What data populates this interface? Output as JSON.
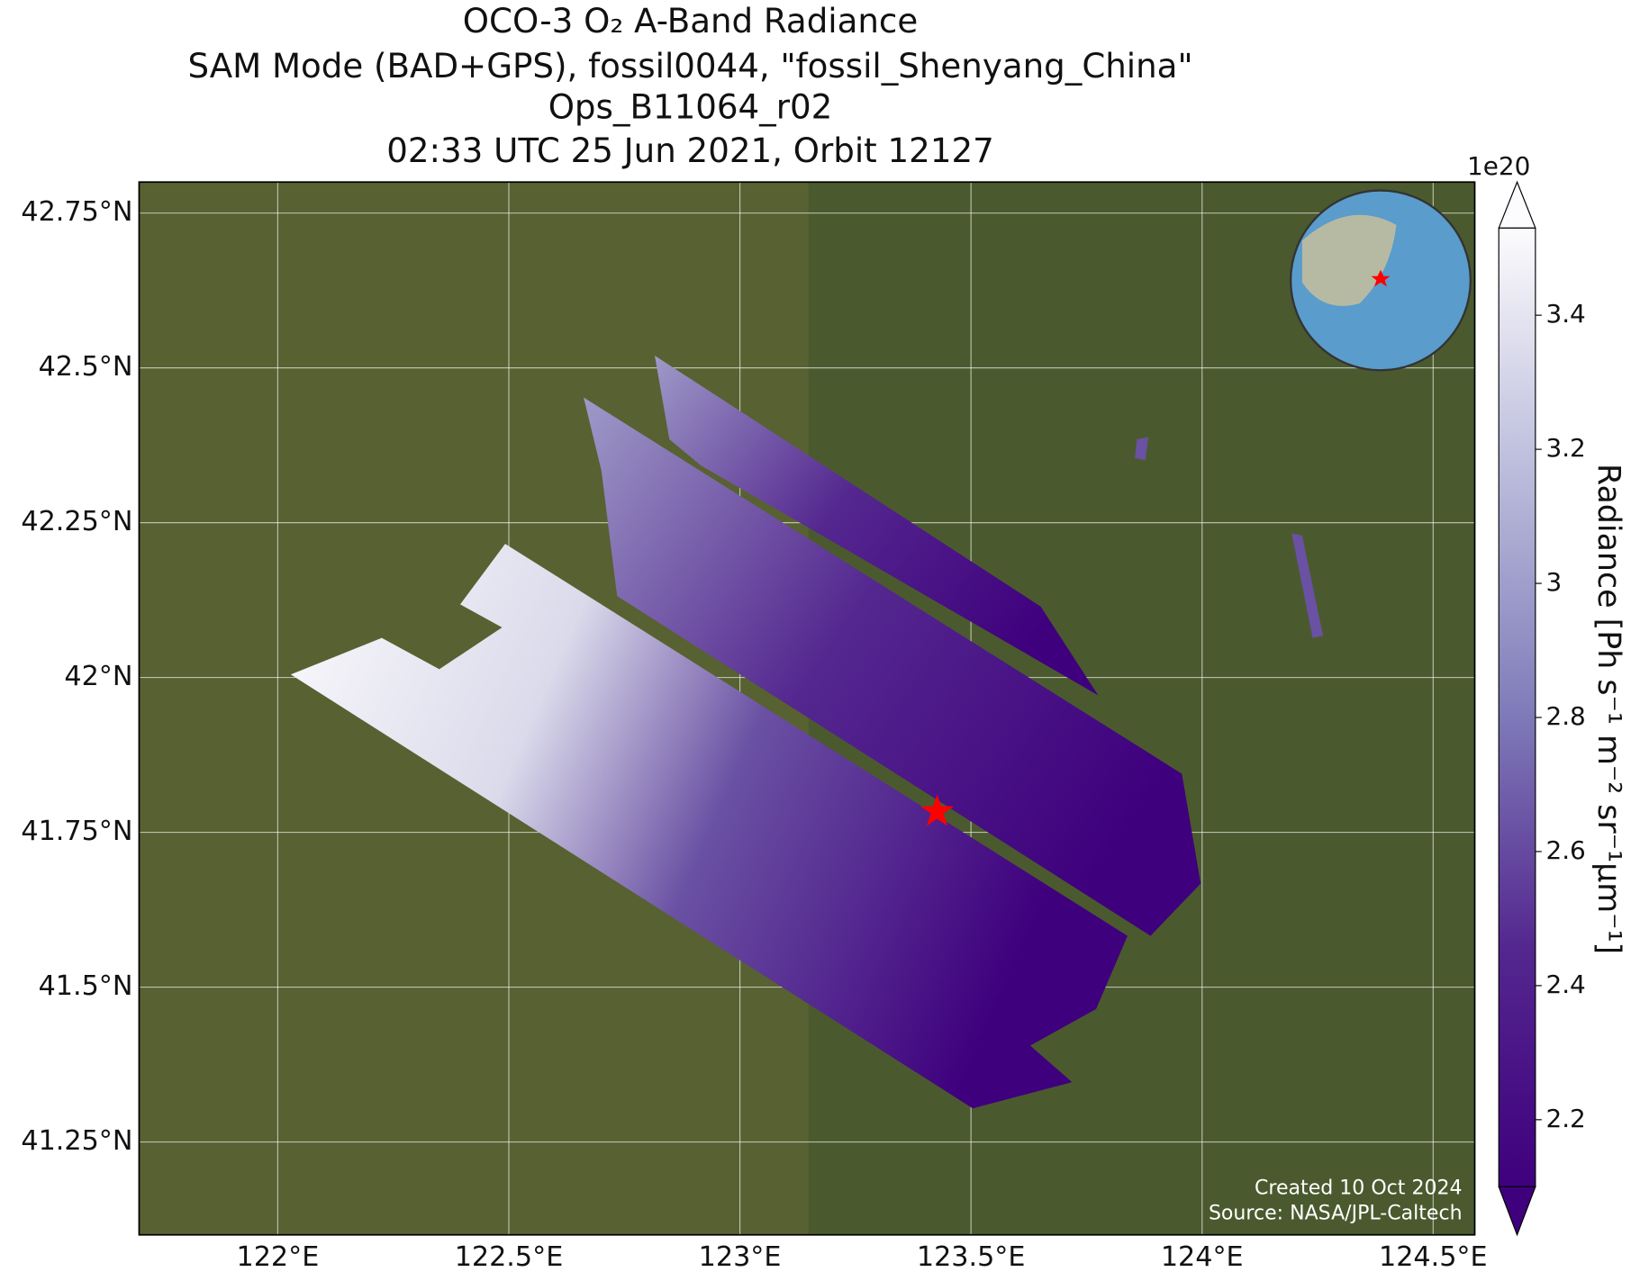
{
  "title": [
    "OCO-3 O₂ A-Band Radiance",
    "SAM Mode (BAD+GPS), fossil0044, \"fossil_Shenyang_China\"",
    "Ops_B11064_r02",
    "02:33 UTC 25 Jun 2021, Orbit 12127"
  ],
  "map": {
    "xlim": [
      121.7,
      124.59
    ],
    "ylim": [
      41.1,
      42.8
    ],
    "xticks": [
      {
        "value": 122,
        "label": "122°E"
      },
      {
        "value": 122.5,
        "label": "122.5°E"
      },
      {
        "value": 123,
        "label": "123°E"
      },
      {
        "value": 123.5,
        "label": "123.5°E"
      },
      {
        "value": 124,
        "label": "124°E"
      },
      {
        "value": 124.5,
        "label": "124.5°E"
      }
    ],
    "yticks": [
      {
        "value": 41.25,
        "label": "41.25°N"
      },
      {
        "value": 41.5,
        "label": "41.5°N"
      },
      {
        "value": 41.75,
        "label": "41.75°N"
      },
      {
        "value": 42,
        "label": "42°N"
      },
      {
        "value": 42.25,
        "label": "42.25°N"
      },
      {
        "value": 42.5,
        "label": "42.5°N"
      },
      {
        "value": 42.75,
        "label": "42.75°N"
      }
    ],
    "grid": true
  },
  "colorbar": {
    "label": "Radiance [Ph s⁻¹ m⁻² sr⁻¹μm⁻¹]",
    "exponent": "1e20",
    "lim": [
      2.1,
      3.53
    ],
    "ticks": [
      2.2,
      2.4,
      2.6,
      2.8,
      3.0,
      3.2,
      3.4
    ]
  },
  "credits": [
    "Created 10 Oct 2024",
    "Source: NASA/JPL-Caltech"
  ]
}
